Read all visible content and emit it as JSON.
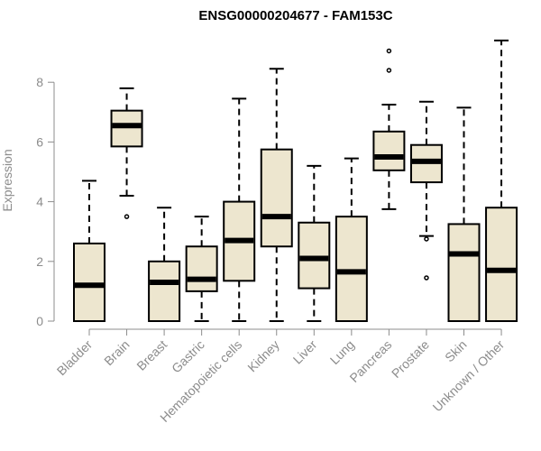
{
  "chart_data": {
    "type": "box",
    "title": "ENSG00000204677 - FAM153C",
    "ylabel": "Expression",
    "xlabel": "",
    "ylim": [
      0,
      9.5
    ],
    "yticks": [
      0,
      2,
      4,
      6,
      8
    ],
    "box_fill": "#ede6cf",
    "categories": [
      "Bladder",
      "Brain",
      "Breast",
      "Gastric",
      "Hematopoietic cells",
      "Kidney",
      "Liver",
      "Lung",
      "Pancreas",
      "Prostate",
      "Skin",
      "Unknown / Other"
    ],
    "boxes": [
      {
        "name": "Bladder",
        "whisker_low": 0,
        "q1": 0,
        "median": 1.2,
        "q3": 2.6,
        "whisker_high": 4.7,
        "outliers": []
      },
      {
        "name": "Brain",
        "whisker_low": 4.2,
        "q1": 5.85,
        "median": 6.55,
        "q3": 7.05,
        "whisker_high": 7.8,
        "outliers": [
          3.5
        ]
      },
      {
        "name": "Breast",
        "whisker_low": 0,
        "q1": 0,
        "median": 1.3,
        "q3": 2.0,
        "whisker_high": 3.8,
        "outliers": []
      },
      {
        "name": "Gastric",
        "whisker_low": 0,
        "q1": 1.0,
        "median": 1.4,
        "q3": 2.5,
        "whisker_high": 3.5,
        "outliers": []
      },
      {
        "name": "Hematopoietic cells",
        "whisker_low": 0,
        "q1": 1.35,
        "median": 2.7,
        "q3": 4.0,
        "whisker_high": 7.45,
        "outliers": []
      },
      {
        "name": "Kidney",
        "whisker_low": 0,
        "q1": 2.5,
        "median": 3.5,
        "q3": 5.75,
        "whisker_high": 8.45,
        "outliers": []
      },
      {
        "name": "Liver",
        "whisker_low": 0,
        "q1": 1.1,
        "median": 2.1,
        "q3": 3.3,
        "whisker_high": 5.2,
        "outliers": []
      },
      {
        "name": "Lung",
        "whisker_low": 0,
        "q1": 0,
        "median": 1.65,
        "q3": 3.5,
        "whisker_high": 5.45,
        "outliers": []
      },
      {
        "name": "Pancreas",
        "whisker_low": 3.75,
        "q1": 5.05,
        "median": 5.5,
        "q3": 6.35,
        "whisker_high": 7.25,
        "outliers": [
          8.4,
          9.05
        ]
      },
      {
        "name": "Prostate",
        "whisker_low": 2.85,
        "q1": 4.65,
        "median": 5.35,
        "q3": 5.9,
        "whisker_high": 7.35,
        "outliers": [
          2.75,
          1.45
        ]
      },
      {
        "name": "Skin",
        "whisker_low": 0,
        "q1": 0,
        "median": 2.25,
        "q3": 3.25,
        "whisker_high": 7.15,
        "outliers": []
      },
      {
        "name": "Unknown / Other",
        "whisker_low": 0,
        "q1": 0,
        "median": 1.7,
        "q3": 3.8,
        "whisker_high": 9.4,
        "outliers": []
      }
    ]
  }
}
